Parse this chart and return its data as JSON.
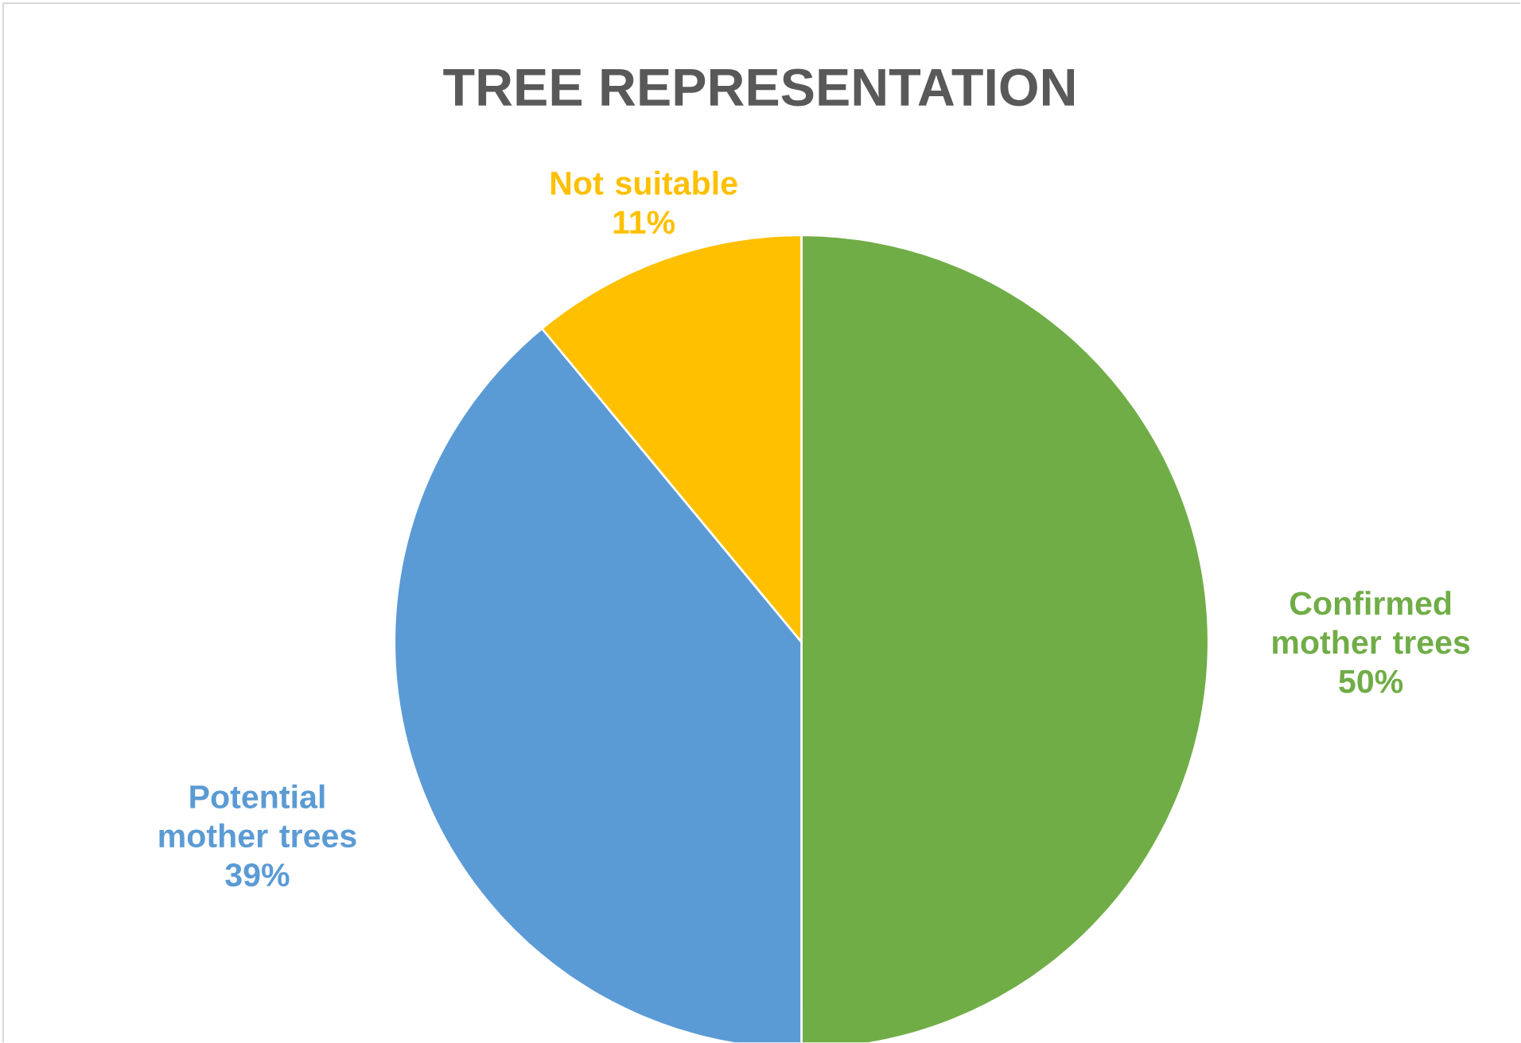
{
  "chart_data": {
    "type": "pie",
    "title": "TREE REPRESENTATION",
    "categories": [
      "Confirmed mother trees",
      "Potential mother trees",
      "Not suitable"
    ],
    "values": [
      50,
      39,
      11
    ],
    "value_labels": [
      "50%",
      "39%",
      "11%"
    ],
    "colors": [
      "#70ad47",
      "#5b9bd5",
      "#ffc000"
    ]
  }
}
